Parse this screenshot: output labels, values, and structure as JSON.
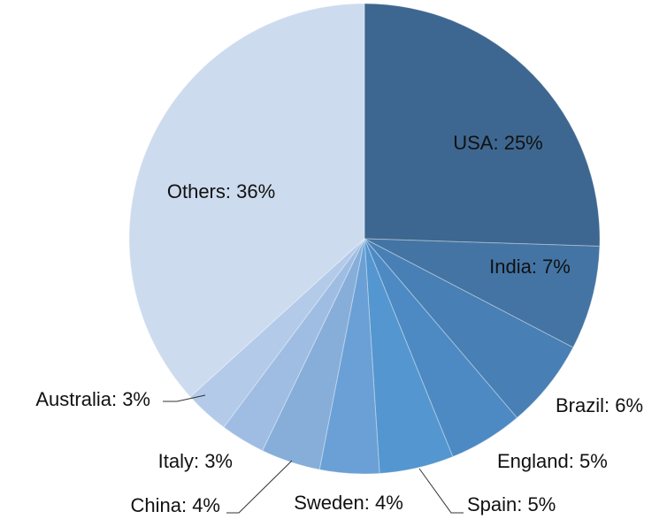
{
  "chart_data": {
    "type": "pie",
    "values": [
      25,
      7,
      6,
      5,
      5,
      4,
      4,
      3,
      3,
      36
    ],
    "value_labels": [
      "USA: 25%",
      "India: 7%",
      "Brazil: 6%",
      "England: 5%",
      "Spain: 5%",
      "Sweden: 4%",
      "China: 4%",
      "Italy: 3%",
      "Australia: 3%",
      "Others: 36%"
    ],
    "colors": [
      "#3d6790",
      "#4374a4",
      "#487fb4",
      "#4d8ac3",
      "#5496cf",
      "#6aa0d5",
      "#86aed9",
      "#9fbde3",
      "#b3cae8",
      "#cddbee"
    ]
  }
}
